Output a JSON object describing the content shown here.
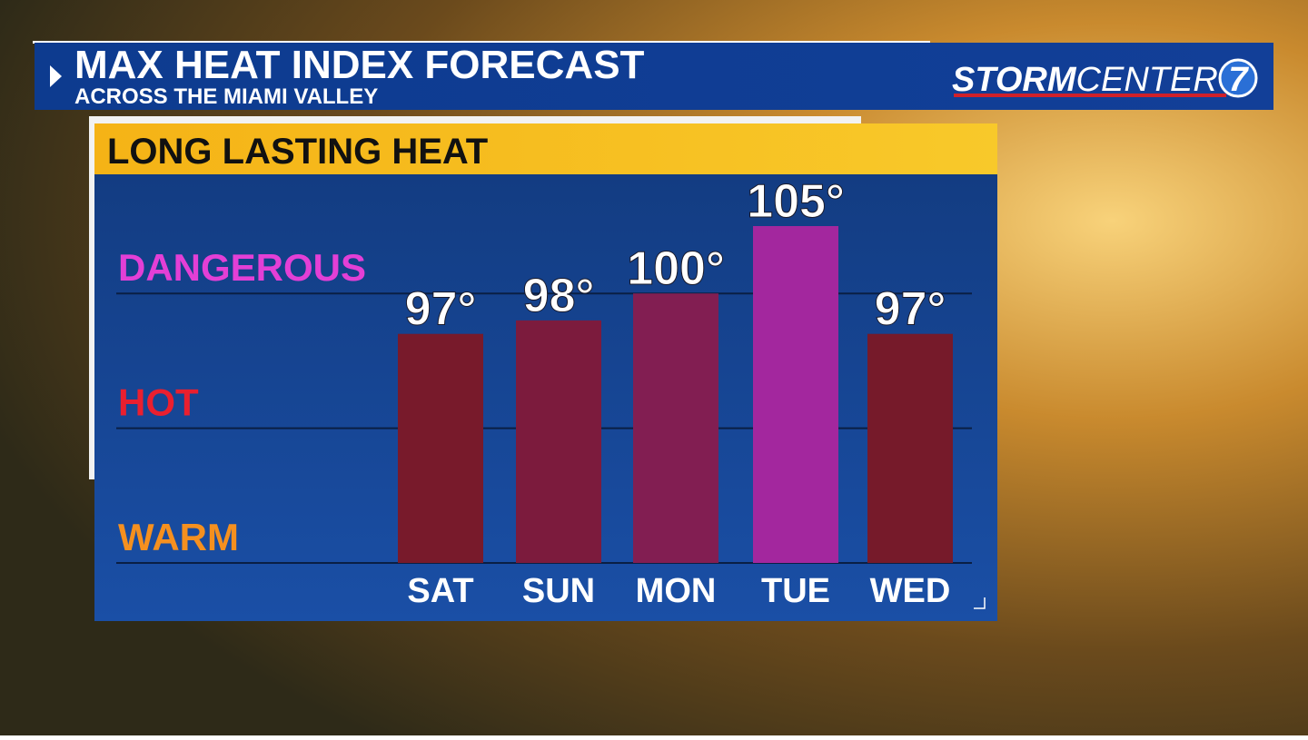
{
  "header": {
    "title": "MAX HEAT INDEX FORECAST",
    "subtitle": "ACROSS THE MIAMI VALLEY",
    "logo_bold": "STORM",
    "logo_light": "CENTER",
    "logo_number": "7"
  },
  "chart_data": {
    "type": "bar",
    "title": "LONG LASTING HEAT",
    "categories": [
      "SAT",
      "SUN",
      "MON",
      "TUE",
      "WED"
    ],
    "values": [
      97,
      98,
      100,
      105,
      97
    ],
    "value_labels": [
      "97°",
      "98°",
      "100°",
      "105°",
      "97°"
    ],
    "colors": [
      "#781a2b",
      "#7c1b3d",
      "#821e52",
      "#a3279e",
      "#761a2a"
    ],
    "ylim": [
      80,
      105
    ],
    "yticks": [
      {
        "value": 80,
        "label": "WARM",
        "color": "#f5901f"
      },
      {
        "value": 90,
        "label": "HOT",
        "color": "#ea1f2f"
      },
      {
        "value": 100,
        "label": "DANGEROUS",
        "color": "#e33fd6"
      }
    ],
    "grid": true
  }
}
